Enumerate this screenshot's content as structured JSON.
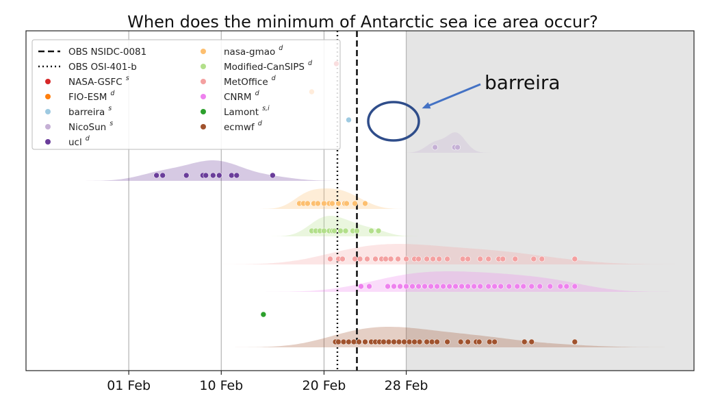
{
  "chart_data": {
    "type": "scatter",
    "title": "When does the minimum of Antarctic sea ice area occur?",
    "xlabel": "",
    "ylabel": "",
    "x_axis": {
      "unit": "day of year",
      "range": [
        22,
        87
      ],
      "ticks": [
        {
          "value": 32,
          "label": "01 Feb"
        },
        {
          "value": 41,
          "label": "10 Feb"
        },
        {
          "value": 51,
          "label": "20 Feb"
        },
        {
          "value": 59,
          "label": "28 Feb"
        }
      ]
    },
    "grid": "vertical",
    "shaded_region": {
      "from": 59,
      "to": 87,
      "color": "#e5e5e5"
    },
    "observations": [
      {
        "name": "OBS NSIDC-0081",
        "value": 54.2,
        "style": "dashed"
      },
      {
        "name": "OBS OSI-401-b",
        "value": 52.3,
        "style": "dotted"
      }
    ],
    "legend": {
      "placement": "top-left",
      "items": [
        {
          "label": "OBS NSIDC-0081",
          "sup": "",
          "kind": "dashed"
        },
        {
          "label": "OBS OSI-401-b",
          "sup": "",
          "kind": "dotted"
        },
        {
          "label": "NASA-GSFC",
          "sup": "s",
          "kind": "dot",
          "color": "#d62728"
        },
        {
          "label": "FIO-ESM",
          "sup": "d",
          "kind": "dot",
          "color": "#ff7f0e"
        },
        {
          "label": "barreira",
          "sup": "s",
          "kind": "dot",
          "color": "#9ecae1"
        },
        {
          "label": "NicoSun",
          "sup": "s",
          "kind": "dot",
          "color": "#c5b0d5"
        },
        {
          "label": "ucl",
          "sup": "d",
          "kind": "dot",
          "color": "#6a3d9a"
        },
        {
          "label": "nasa-gmao",
          "sup": "d",
          "kind": "dot",
          "color": "#fdbf6f"
        },
        {
          "label": "Modified-CanSIPS",
          "sup": "d",
          "kind": "dot",
          "color": "#b2df8a"
        },
        {
          "label": "MetOffice",
          "sup": "d",
          "kind": "dot",
          "color": "#f4a0a0"
        },
        {
          "label": "CNRM",
          "sup": "d",
          "kind": "dot",
          "color": "#ee82ee"
        },
        {
          "label": "Lamont",
          "sup": "s,i",
          "kind": "dot",
          "color": "#2ca02c"
        },
        {
          "label": "ecmwf",
          "sup": "d",
          "kind": "dot",
          "color": "#a0522d"
        }
      ]
    },
    "series": [
      {
        "name": "NASA-GSFC",
        "color": "#d62728",
        "row": 0,
        "values": [
          52.2
        ]
      },
      {
        "name": "FIO-ESM",
        "color": "#ff7f0e",
        "row": 1,
        "values": [
          49.8
        ]
      },
      {
        "name": "barreira",
        "color": "#9ecae1",
        "row": 2,
        "values": [
          53.4
        ]
      },
      {
        "name": "NicoSun",
        "color": "#c5b0d5",
        "row": 3,
        "values": [
          61.8,
          63.7,
          64.0
        ]
      },
      {
        "name": "ucl",
        "color": "#6a3d9a",
        "row": 4,
        "values": [
          34.7,
          35.3,
          37.6,
          39.2,
          39.5,
          40.2,
          40.8,
          42.0,
          42.5,
          46.0
        ]
      },
      {
        "name": "nasa-gmao",
        "color": "#fdbf6f",
        "row": 5,
        "values": [
          48.6,
          49.0,
          49.4,
          50.0,
          50.4,
          51.0,
          51.5,
          51.8,
          52.4,
          53.0,
          53.2,
          54.0,
          55.0
        ]
      },
      {
        "name": "Modified-CanSIPS",
        "color": "#b2df8a",
        "row": 6,
        "values": [
          49.8,
          50.2,
          50.6,
          51.0,
          51.5,
          51.8,
          52.0,
          52.6,
          53.1,
          53.8,
          54.2,
          55.6,
          56.3
        ]
      },
      {
        "name": "MetOffice",
        "color": "#f4a0a0",
        "row": 7,
        "values": [
          51.6,
          52.4,
          52.8,
          54.0,
          54.5,
          55.2,
          56.0,
          56.6,
          57.0,
          57.5,
          58.2,
          59.0,
          59.8,
          60.2,
          61.0,
          61.6,
          62.2,
          63.0,
          64.5,
          65.0,
          66.2,
          67.0,
          68.0,
          68.4,
          69.6,
          71.4,
          72.2,
          75.4
        ]
      },
      {
        "name": "CNRM",
        "color": "#ee82ee",
        "row": 8,
        "values": [
          54.6,
          55.4,
          57.2,
          57.8,
          58.4,
          59.0,
          59.6,
          60.2,
          60.8,
          61.4,
          62.0,
          62.6,
          63.2,
          63.8,
          64.4,
          65.0,
          65.6,
          66.2,
          67.0,
          67.6,
          68.2,
          69.0,
          69.8,
          70.4,
          71.2,
          72.0,
          73.0,
          74.0,
          74.6,
          75.4
        ]
      },
      {
        "name": "Lamont",
        "color": "#2ca02c",
        "row": 9,
        "values": [
          45.1
        ]
      },
      {
        "name": "ecmwf",
        "color": "#a0522d",
        "row": 10,
        "values": [
          52.1,
          52.4,
          52.9,
          53.4,
          53.9,
          54.4,
          55.0,
          55.6,
          56.0,
          56.4,
          56.8,
          57.3,
          57.8,
          58.3,
          58.8,
          59.3,
          59.8,
          60.3,
          61.0,
          61.5,
          62.0,
          63.0,
          64.3,
          65.0,
          65.8,
          66.1,
          67.1,
          67.6,
          70.5,
          71.2,
          75.4
        ]
      }
    ],
    "annotation": {
      "text": "barreira",
      "target_series": "barreira"
    }
  }
}
